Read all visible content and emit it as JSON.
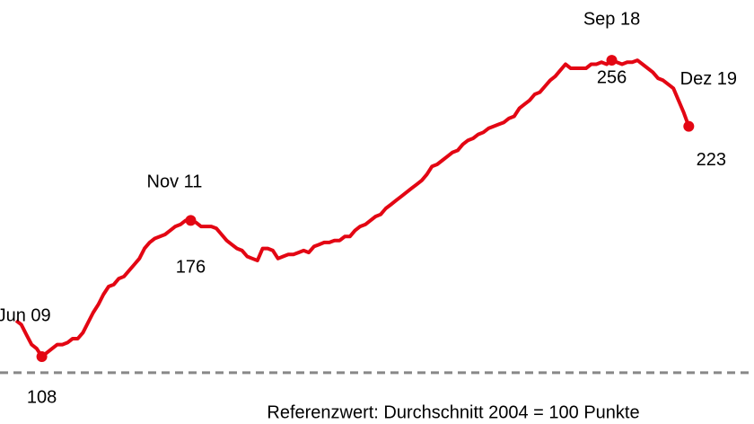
{
  "chart_data": {
    "type": "line",
    "note": "Referenzwert:  Durchschnitt 2004 = 100 Punkte",
    "reference": 100,
    "ylim": [
      95,
      265
    ],
    "categories": [
      null,
      null,
      null,
      null,
      null,
      "Jun 09",
      null,
      null,
      null,
      null,
      null,
      null,
      null,
      null,
      null,
      null,
      null,
      null,
      null,
      null,
      null,
      null,
      null,
      null,
      null,
      null,
      null,
      null,
      null,
      null,
      null,
      null,
      null,
      null,
      "Nov 11",
      null,
      null,
      null,
      null,
      null,
      null,
      null,
      null,
      null,
      null,
      null,
      null,
      null,
      null,
      null,
      null,
      null,
      null,
      null,
      null,
      null,
      null,
      null,
      null,
      null,
      null,
      null,
      null,
      null,
      null,
      null,
      null,
      null,
      null,
      null,
      null,
      null,
      null,
      null,
      null,
      null,
      null,
      null,
      null,
      null,
      null,
      null,
      null,
      null,
      null,
      null,
      null,
      null,
      null,
      null,
      null,
      null,
      null,
      null,
      null,
      null,
      null,
      null,
      null,
      null,
      null,
      null,
      null,
      null,
      null,
      null,
      null,
      null,
      null,
      null,
      null,
      null,
      null,
      null,
      null,
      null,
      "Sep 18",
      null,
      null,
      null,
      null,
      null,
      null,
      null,
      null,
      null,
      null,
      null,
      null,
      null,
      null,
      "Dez 19"
    ],
    "series": [
      {
        "color": "#e30613",
        "values": [
          126,
          124,
          119,
          114,
          112,
          108,
          110,
          112,
          114,
          114,
          115,
          117,
          117,
          120,
          125,
          130,
          134,
          139,
          143,
          144,
          147,
          148,
          151,
          154,
          157,
          162,
          165,
          167,
          168,
          169,
          171,
          173,
          174,
          176,
          176,
          175,
          173,
          173,
          173,
          172,
          169,
          166,
          164,
          162,
          161,
          158,
          157,
          156,
          162,
          162,
          161,
          157,
          158,
          159,
          159,
          160,
          161,
          160,
          163,
          164,
          165,
          165,
          166,
          166,
          168,
          168,
          171,
          173,
          174,
          176,
          178,
          179,
          182,
          184,
          186,
          188,
          190,
          192,
          194,
          196,
          199,
          203,
          204,
          206,
          208,
          210,
          211,
          214,
          216,
          217,
          219,
          220,
          222,
          223,
          224,
          225,
          227,
          228,
          232,
          234,
          236,
          239,
          240,
          243,
          246,
          248,
          251,
          254,
          252,
          252,
          252,
          252,
          254,
          254,
          255,
          254,
          256,
          255,
          254,
          255,
          255,
          256,
          254,
          252,
          250,
          247,
          246,
          244,
          242,
          236,
          230,
          223
        ]
      }
    ]
  }
}
